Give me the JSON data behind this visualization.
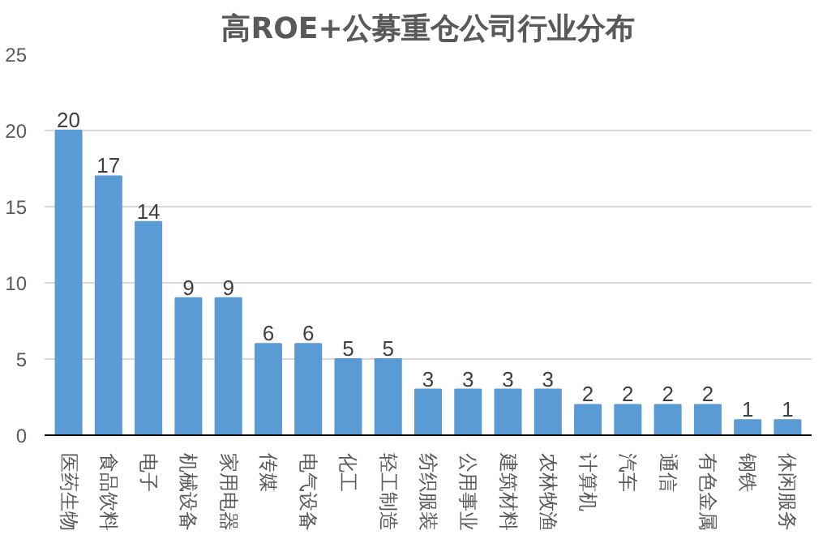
{
  "chart_data": {
    "type": "bar",
    "title": "高ROE+公募重仓公司行业分布",
    "categories": [
      "医药生物",
      "食品饮料",
      "电子",
      "机械设备",
      "家用电器",
      "传媒",
      "电气设备",
      "化工",
      "轻工制造",
      "纺织服装",
      "公用事业",
      "建筑材料",
      "农林牧渔",
      "计算机",
      "汽车",
      "通信",
      "有色金属",
      "钢铁",
      "休闲服务"
    ],
    "values": [
      20,
      17,
      14,
      9,
      9,
      6,
      6,
      5,
      5,
      3,
      3,
      3,
      3,
      2,
      2,
      2,
      2,
      1,
      1
    ],
    "color": "#5b9bd5",
    "ylim": [
      0,
      25
    ],
    "yticks": [
      0,
      5,
      10,
      15,
      20,
      25
    ],
    "grid": "y",
    "data_labels": true
  }
}
